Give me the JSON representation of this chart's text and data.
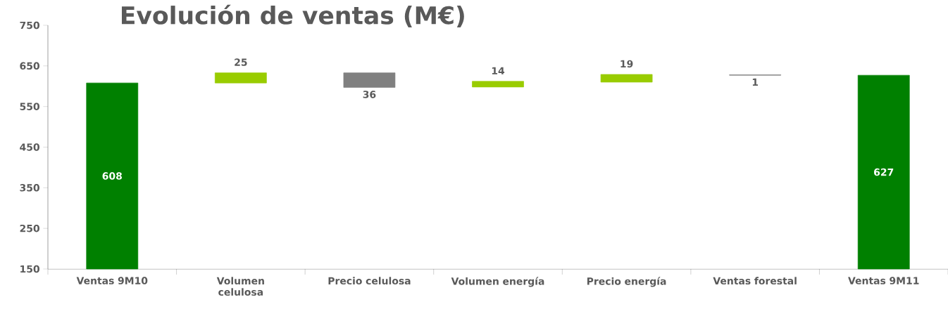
{
  "chart_data": {
    "type": "bar",
    "title": "Evolución de ventas (M€)",
    "categories": [
      "Ventas 9M10",
      "Volumen celulosa",
      "Precio celulosa",
      "Volumen energía",
      "Precio energía",
      "Ventas forestal",
      "Ventas 9M11"
    ],
    "values": [
      608,
      25,
      -36,
      14,
      19,
      -1,
      627
    ],
    "base": [
      null,
      608,
      633,
      598,
      610,
      628,
      null
    ],
    "colors": [
      "#008000",
      "#99cc00",
      "#808080",
      "#99cc00",
      "#99cc00",
      "#808080",
      "#008000"
    ],
    "value_labels": [
      "608",
      "25",
      "36",
      "14",
      "19",
      "1",
      "627"
    ],
    "ylim": [
      150,
      750
    ],
    "yticks": [
      150,
      250,
      350,
      450,
      550,
      650,
      750
    ],
    "grid": false
  }
}
